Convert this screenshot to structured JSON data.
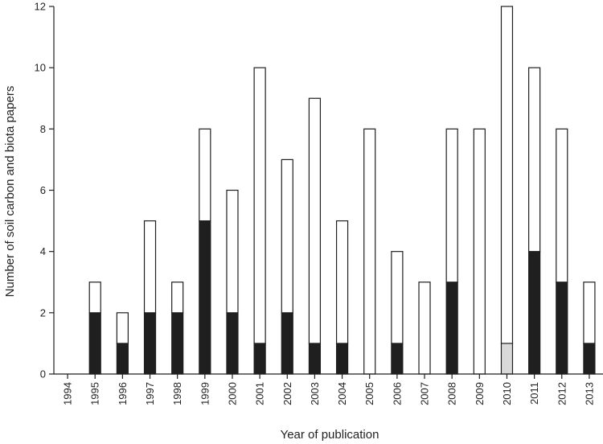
{
  "chart_data": {
    "type": "bar",
    "stacked": true,
    "xlabel": "Year of publication",
    "ylabel": "Number of soil carbon and biota papers",
    "ylim": [
      0,
      12
    ],
    "yticks": [
      "0",
      "2",
      "4",
      "6",
      "8",
      "10",
      "12"
    ],
    "grid": false,
    "categories": [
      "1994",
      "1995",
      "1996",
      "1997",
      "1998",
      "1999",
      "2000",
      "2001",
      "2002",
      "2003",
      "2004",
      "2005",
      "2006",
      "2007",
      "2008",
      "2009",
      "2010",
      "2011",
      "2012",
      "2013"
    ],
    "series": [
      {
        "color": "#1f1f1f",
        "values": [
          0,
          2,
          1,
          2,
          2,
          5,
          2,
          1,
          2,
          1,
          1,
          0,
          1,
          0,
          3,
          0,
          0,
          4,
          3,
          1
        ]
      },
      {
        "color": "#d9d9d9",
        "values": [
          0,
          0,
          0,
          0,
          0,
          0,
          0,
          0,
          0,
          0,
          0,
          0,
          0,
          0,
          0,
          0,
          1,
          0,
          0,
          0
        ]
      },
      {
        "color": "#ffffff",
        "values": [
          0,
          1,
          1,
          3,
          1,
          3,
          4,
          9,
          5,
          8,
          4,
          8,
          3,
          3,
          5,
          8,
          11,
          6,
          5,
          2
        ]
      }
    ]
  }
}
